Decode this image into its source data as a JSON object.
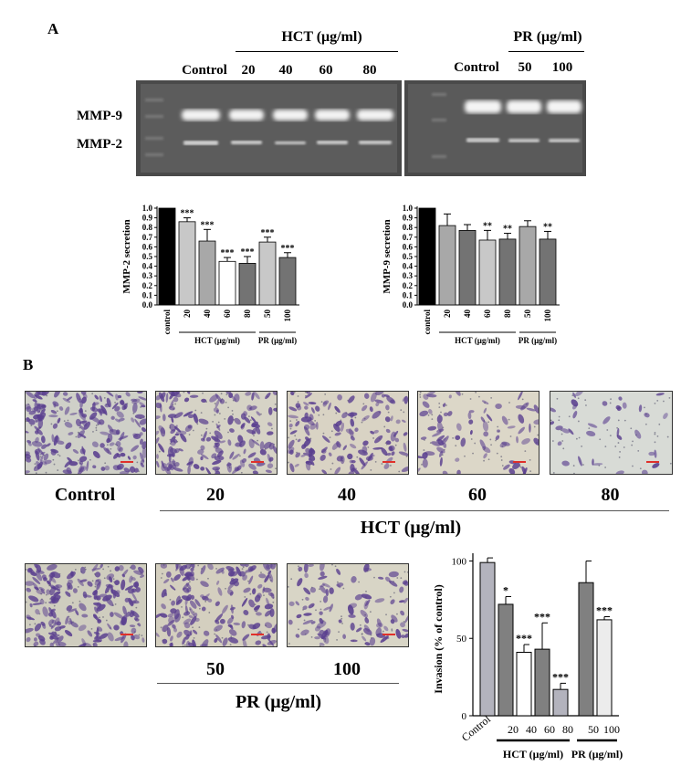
{
  "panelA": {
    "letter": "A",
    "hct_header": "HCT (μg/ml)",
    "pr_header": "PR (μg/ml)",
    "lanes_left": [
      "Control",
      "20",
      "40",
      "60",
      "80"
    ],
    "lanes_right": [
      "Control",
      "50",
      "100"
    ],
    "band_labels": [
      "MMP-9",
      "MMP-2"
    ]
  },
  "panelB": {
    "letter": "B",
    "top_labels": [
      "Control",
      "20",
      "40",
      "60",
      "80"
    ],
    "top_group": "HCT (μg/ml)",
    "bottom_labels": [
      "50",
      "100"
    ],
    "bottom_group": "PR (μg/ml)"
  },
  "colors": {
    "black": "#000000",
    "light_gray": "#c8c8c8",
    "mid_gray": "#a8a8a8",
    "dark_gray": "#737373",
    "white": "#ffffff",
    "stain": "#5a3f8f"
  },
  "chart_data": [
    {
      "type": "bar",
      "categories": [
        "control",
        "20",
        "40",
        "60",
        "80",
        "50",
        "100"
      ],
      "values": [
        1.0,
        0.86,
        0.66,
        0.45,
        0.43,
        0.65,
        0.49
      ],
      "errors": [
        0.0,
        0.04,
        0.12,
        0.04,
        0.07,
        0.05,
        0.05
      ],
      "significance": [
        "",
        "***",
        "***",
        "***",
        "***",
        "***",
        "***"
      ],
      "ylabel": "MMP-2 secretion",
      "ylim": [
        0,
        1.0
      ],
      "yticks": [
        "0.0",
        "0.1",
        "0.2",
        "0.3",
        "0.4",
        "0.5",
        "0.6",
        "0.7",
        "0.8",
        "0.9",
        "1.0"
      ],
      "groups": [
        "HCT (μg/ml)",
        "PR (μg/ml)"
      ]
    },
    {
      "type": "bar",
      "categories": [
        "control",
        "20",
        "40",
        "60",
        "80",
        "50",
        "100"
      ],
      "values": [
        1.0,
        0.82,
        0.77,
        0.67,
        0.68,
        0.81,
        0.68
      ],
      "errors": [
        0.0,
        0.12,
        0.06,
        0.1,
        0.06,
        0.06,
        0.08
      ],
      "significance": [
        "",
        "",
        "",
        "**",
        "**",
        "",
        "**"
      ],
      "ylabel": "MMP-9 secretion",
      "ylim": [
        0,
        1.0
      ],
      "yticks": [
        "0.0",
        "0.1",
        "0.2",
        "0.3",
        "0.4",
        "0.5",
        "0.6",
        "0.7",
        "0.8",
        "0.9",
        "1.0"
      ],
      "groups": [
        "HCT (μg/ml)",
        "PR (μg/ml)"
      ]
    },
    {
      "type": "bar",
      "categories": [
        "Control",
        "20",
        "40",
        "60",
        "80",
        "50",
        "100"
      ],
      "values": [
        99,
        72,
        41,
        43,
        17,
        86,
        62
      ],
      "errors": [
        3,
        5,
        5,
        17,
        4,
        14,
        2
      ],
      "significance": [
        "",
        "*",
        "***",
        "***",
        "***",
        "",
        "***"
      ],
      "ylabel": "Invasion (% of control)",
      "ylim": [
        0,
        105
      ],
      "yticks": [
        "0",
        "50",
        "100"
      ],
      "groups": [
        "HCT (μg/ml)",
        "PR (μg/ml)"
      ]
    }
  ]
}
